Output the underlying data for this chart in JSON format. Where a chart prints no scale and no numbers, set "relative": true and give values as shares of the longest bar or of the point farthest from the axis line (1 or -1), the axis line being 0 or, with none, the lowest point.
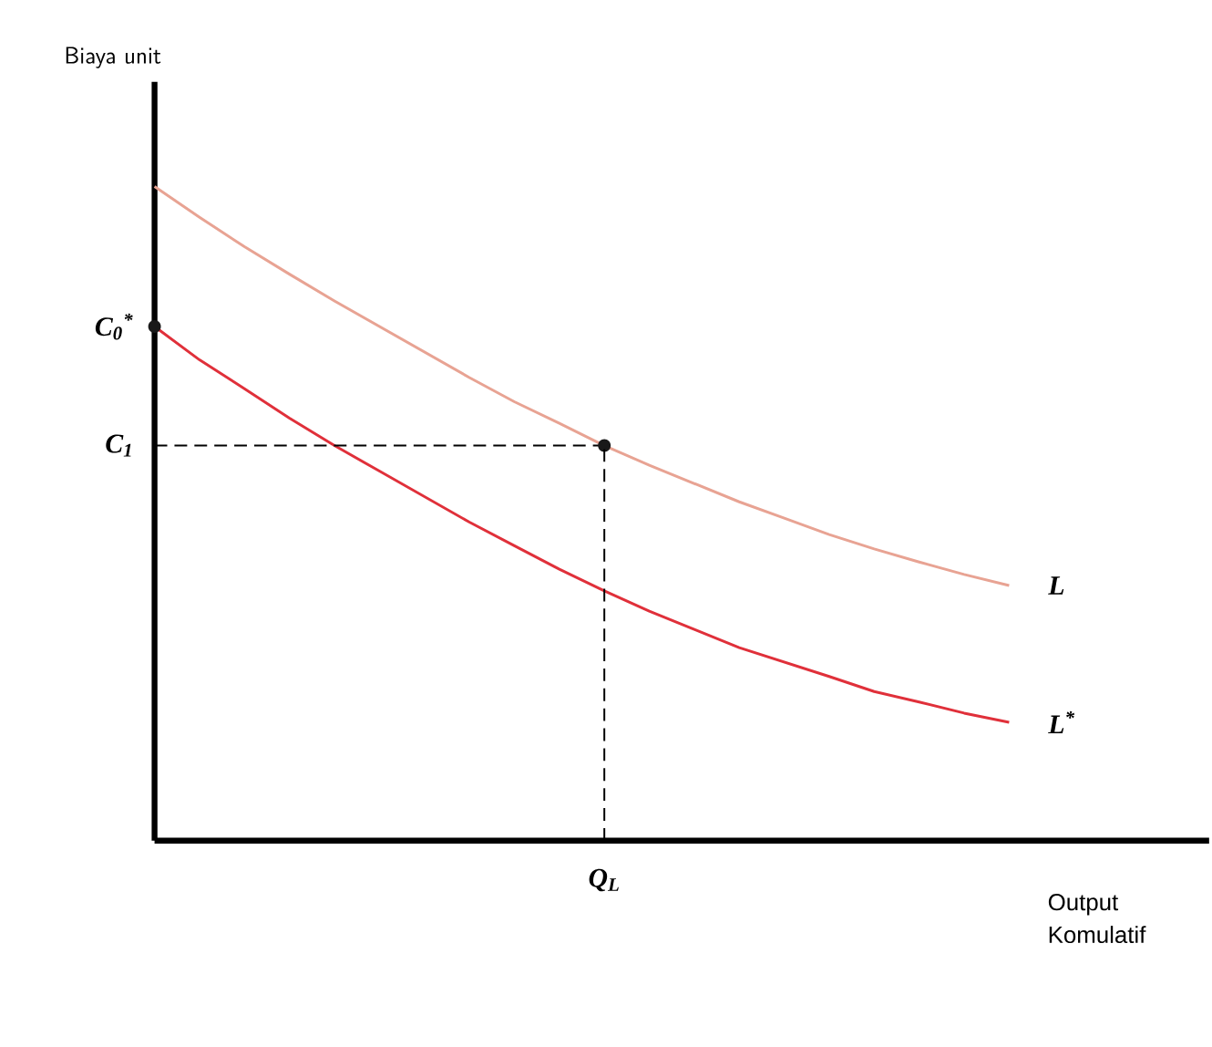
{
  "chart_data": {
    "type": "line",
    "relative": true,
    "xlabel": "Output Komulatif",
    "categories": [
      null,
      null,
      null,
      null,
      null,
      null,
      null,
      null,
      null,
      null,
      null,
      null,
      null,
      null,
      null,
      null,
      null,
      null,
      null,
      null
    ],
    "series": [
      {
        "name": "L",
        "color": "#e8a393",
        "values": [
          1,
          0.953,
          0.908,
          0.866,
          0.825,
          0.786,
          0.747,
          0.708,
          0.671,
          0.638,
          0.604,
          0.574,
          0.546,
          0.518,
          0.493,
          0.468,
          0.446,
          0.426,
          0.407,
          0.39
        ]
      },
      {
        "name": "L$^{*}$",
        "color": "#e0303a",
        "values": [
          0.786,
          0.735,
          0.691,
          0.646,
          0.604,
          0.565,
          0.526,
          0.487,
          0.451,
          0.415,
          0.382,
          0.351,
          0.323,
          0.295,
          0.273,
          0.251,
          0.228,
          0.212,
          0.195,
          0.181
        ]
      }
    ],
    "annotations": [
      "C$_{0}$$^{*}$",
      "C$_{1}$",
      "Q$_{L}$",
      "Biaya unit"
    ]
  }
}
